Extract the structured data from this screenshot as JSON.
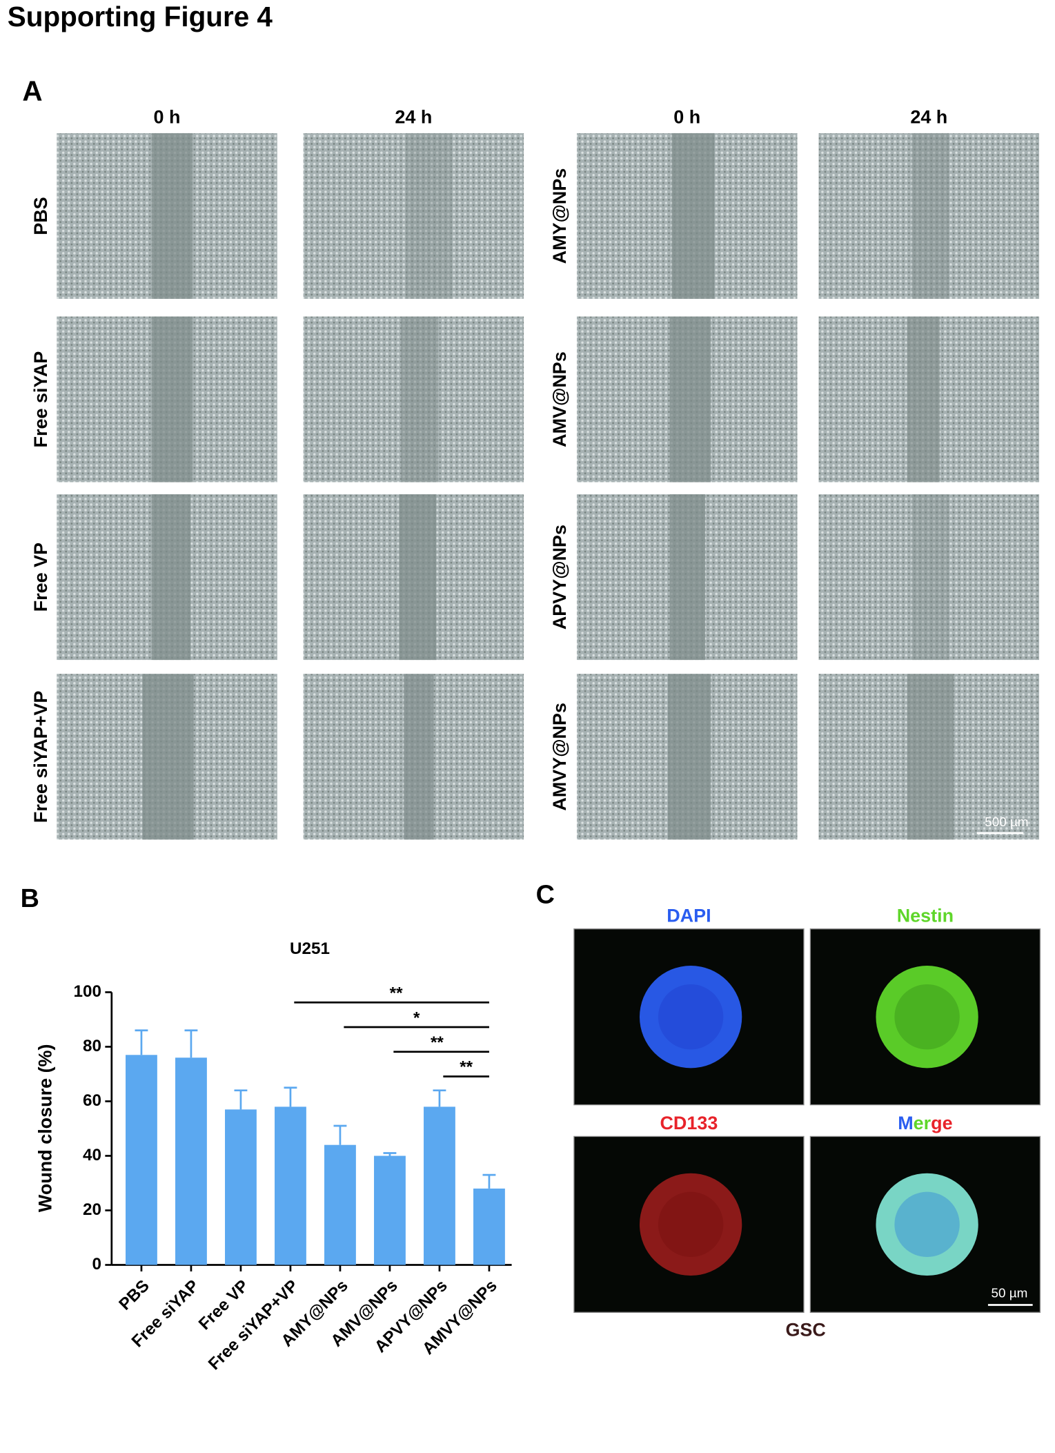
{
  "title": "Supporting Figure 4",
  "panel_a": {
    "label": "A",
    "columns": [
      "0 h",
      "24 h",
      "0 h",
      "24 h"
    ],
    "rows_left": [
      "PBS",
      "Free siYAP",
      "Free VP",
      "Free siYAP+VP"
    ],
    "rows_right": [
      "AMY@NPs",
      "AMV@NPs",
      "APVY@NPs",
      "AMVY@NPs"
    ],
    "scale_bar": "500 µm"
  },
  "chart_data": {
    "type": "bar",
    "panel_label": "B",
    "title": "U251",
    "y_label": "Wound closure (%)",
    "categories": [
      "PBS",
      "Free siYAP",
      "Free VP",
      "Free siYAP+VP",
      "AMY@NPs",
      "AMV@NPs",
      "APVY@NPs",
      "AMVY@NPs"
    ],
    "values": [
      77,
      76,
      57,
      58,
      44,
      40,
      58,
      28
    ],
    "errors": [
      9,
      10,
      7,
      7,
      7,
      1,
      6,
      5
    ],
    "color": "#5ba8f0",
    "ylim": [
      0,
      100
    ],
    "yticks": [
      0,
      20,
      40,
      60,
      80,
      100
    ],
    "significance": [
      {
        "from": "Free siYAP+VP",
        "to": "AMVY@NPs",
        "label": "**"
      },
      {
        "from": "AMY@NPs",
        "to": "AMVY@NPs",
        "label": "*"
      },
      {
        "from": "AMV@NPs",
        "to": "AMVY@NPs",
        "label": "**"
      },
      {
        "from": "APVY@NPs",
        "to": "AMVY@NPs",
        "label": "**"
      }
    ]
  },
  "panel_c": {
    "label": "C",
    "images": [
      "DAPI",
      "Nestin",
      "CD133",
      "Merge"
    ],
    "cell": "GSC",
    "scale_bar": "50 µm"
  }
}
